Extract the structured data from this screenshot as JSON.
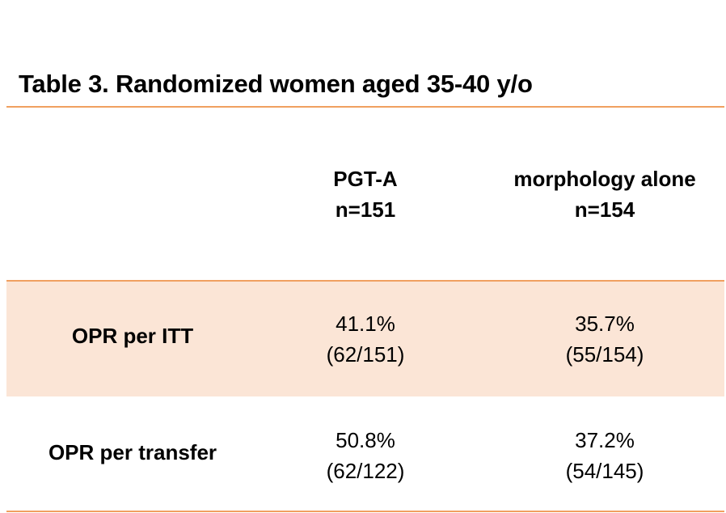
{
  "title": "Table 3. Randomized women aged 35-40 y/o",
  "colors": {
    "accent_rule": "#F0A060",
    "highlight_band": "#FBE5D6"
  },
  "columns": [
    {
      "name": "PGT-A",
      "n": "n=151"
    },
    {
      "name": "morphology alone",
      "n": "n=154"
    }
  ],
  "rows": [
    {
      "label": "OPR per ITT",
      "values": [
        {
          "pct": "41.1%",
          "frac": "(62/151)"
        },
        {
          "pct": "35.7%",
          "frac": "(55/154)"
        }
      ]
    },
    {
      "label": "OPR per transfer",
      "values": [
        {
          "pct": "50.8%",
          "frac": "(62/122)"
        },
        {
          "pct": "37.2%",
          "frac": "(54/145)"
        }
      ]
    }
  ]
}
